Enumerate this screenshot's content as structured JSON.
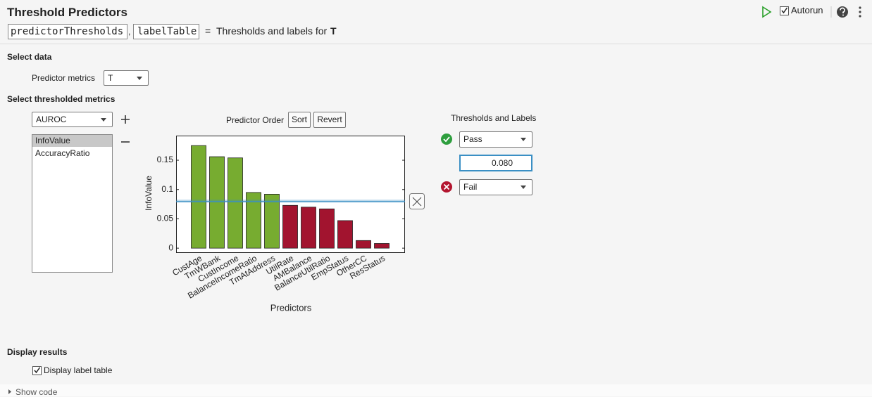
{
  "header": {
    "title": "Threshold Predictors",
    "outputs": [
      "predictorThresholds",
      "labelTable"
    ],
    "comma": ",",
    "equals": "=",
    "description": "Thresholds and labels for",
    "input": "T",
    "autorun": "Autorun"
  },
  "select_data": {
    "heading": "Select data",
    "label": "Predictor metrics",
    "value": "T"
  },
  "select_metrics": {
    "heading": "Select thresholded metrics",
    "dropdown": "AUROC",
    "list": [
      "InfoValue",
      "AccuracyRatio"
    ]
  },
  "chart_data": {
    "type": "bar",
    "order_label": "Predictor Order",
    "buttons": [
      "Sort",
      "Revert"
    ],
    "ylabel": "InfoValue",
    "xlabel": "Predictors",
    "categories": [
      "CustAge",
      "TmWBank",
      "CustIncome",
      "BalanceIncomeRatio",
      "TmAtAddress",
      "UtilRate",
      "AMBalance",
      "BalanceUtilRatio",
      "EmpStatus",
      "OtherCC",
      "ResStatus"
    ],
    "values": [
      0.175,
      0.156,
      0.154,
      0.095,
      0.092,
      0.073,
      0.07,
      0.067,
      0.047,
      0.013,
      0.008
    ],
    "colors": [
      "#77ac30",
      "#77ac30",
      "#77ac30",
      "#77ac30",
      "#77ac30",
      "#a2142f",
      "#a2142f",
      "#a2142f",
      "#a2142f",
      "#a2142f",
      "#a2142f"
    ],
    "ylim": [
      -0.007,
      0.192
    ],
    "yticks": [
      0,
      0.05,
      0.1,
      0.15
    ],
    "grid": false,
    "threshold": 0.08,
    "threshold_color": "#3a8fc4"
  },
  "thresholds": {
    "heading": "Thresholds and Labels",
    "pass": "Pass",
    "value": "0.080",
    "fail": "Fail"
  },
  "display": {
    "heading": "Display results",
    "checkbox": "Display label table"
  },
  "footer": {
    "show_code": "Show code"
  }
}
